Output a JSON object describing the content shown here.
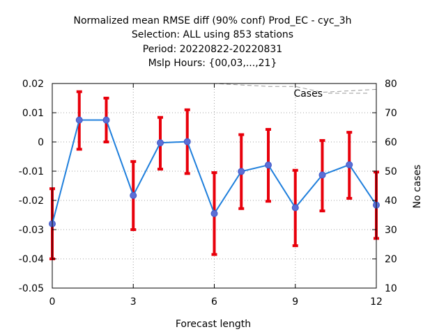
{
  "chart_data": {
    "type": "line",
    "title_lines": [
      "Normalized mean RMSE diff (90% conf) Prod_EC - cyc_3h",
      "Selection: ALL using   853 stations",
      "Period: 20220822-20220831",
      "Mslp   Hours: {00,03,...,21}"
    ],
    "xlabel": "Forecast length",
    "ylabel": "",
    "y2label": "No cases",
    "xlim": [
      0,
      12
    ],
    "ylim": [
      -0.05,
      0.02
    ],
    "y2lim": [
      10,
      80
    ],
    "x_ticks": [
      "0",
      "3",
      "6",
      "9",
      "12"
    ],
    "x_tick_values": [
      0,
      3,
      6,
      9,
      12
    ],
    "y_ticks": [
      "0.02",
      "0.01",
      "0",
      "-0.01",
      "-0.02",
      "-0.03",
      "-0.04",
      "-0.05"
    ],
    "y_tick_values": [
      0.02,
      0.01,
      0,
      -0.01,
      -0.02,
      -0.03,
      -0.04,
      -0.05
    ],
    "y2_ticks": [
      "80",
      "70",
      "60",
      "50",
      "40",
      "30",
      "20",
      "10"
    ],
    "y2_tick_values": [
      80,
      70,
      60,
      50,
      40,
      30,
      20,
      10
    ],
    "grid": true,
    "series": [
      {
        "color": "#1f7fdc",
        "marker_color": "#5b6fd6",
        "x": [
          0,
          1,
          2,
          3,
          4,
          5,
          6,
          7,
          8,
          9,
          10,
          11,
          12
        ],
        "values": [
          -0.028,
          0.0075,
          0.0075,
          -0.0183,
          -0.0003,
          0.0001,
          -0.0245,
          -0.0101,
          -0.0079,
          -0.0225,
          -0.0113,
          -0.0078,
          -0.0216
        ],
        "error_low": [
          -0.04,
          -0.0025,
          0.0,
          -0.03,
          -0.0093,
          -0.0108,
          -0.0385,
          -0.0228,
          -0.0203,
          -0.0355,
          -0.0236,
          -0.0193,
          -0.033
        ],
        "error_high": [
          -0.016,
          0.0172,
          0.015,
          -0.0067,
          0.0084,
          0.011,
          -0.0105,
          0.0025,
          0.0043,
          -0.0097,
          0.0005,
          0.0033,
          -0.0103
        ],
        "error_color": "#e8000b"
      }
    ],
    "cases_series": {
      "name": "Cases",
      "axis": "y2",
      "color": "#999999",
      "x": [
        0,
        1,
        2,
        3,
        4,
        5,
        6,
        7,
        8,
        9,
        10,
        11,
        12
      ],
      "values": [
        80,
        80,
        80,
        80,
        80,
        80,
        80,
        79.5,
        79,
        79,
        77,
        77.5,
        78
      ]
    },
    "legend_placement": "top-right"
  }
}
